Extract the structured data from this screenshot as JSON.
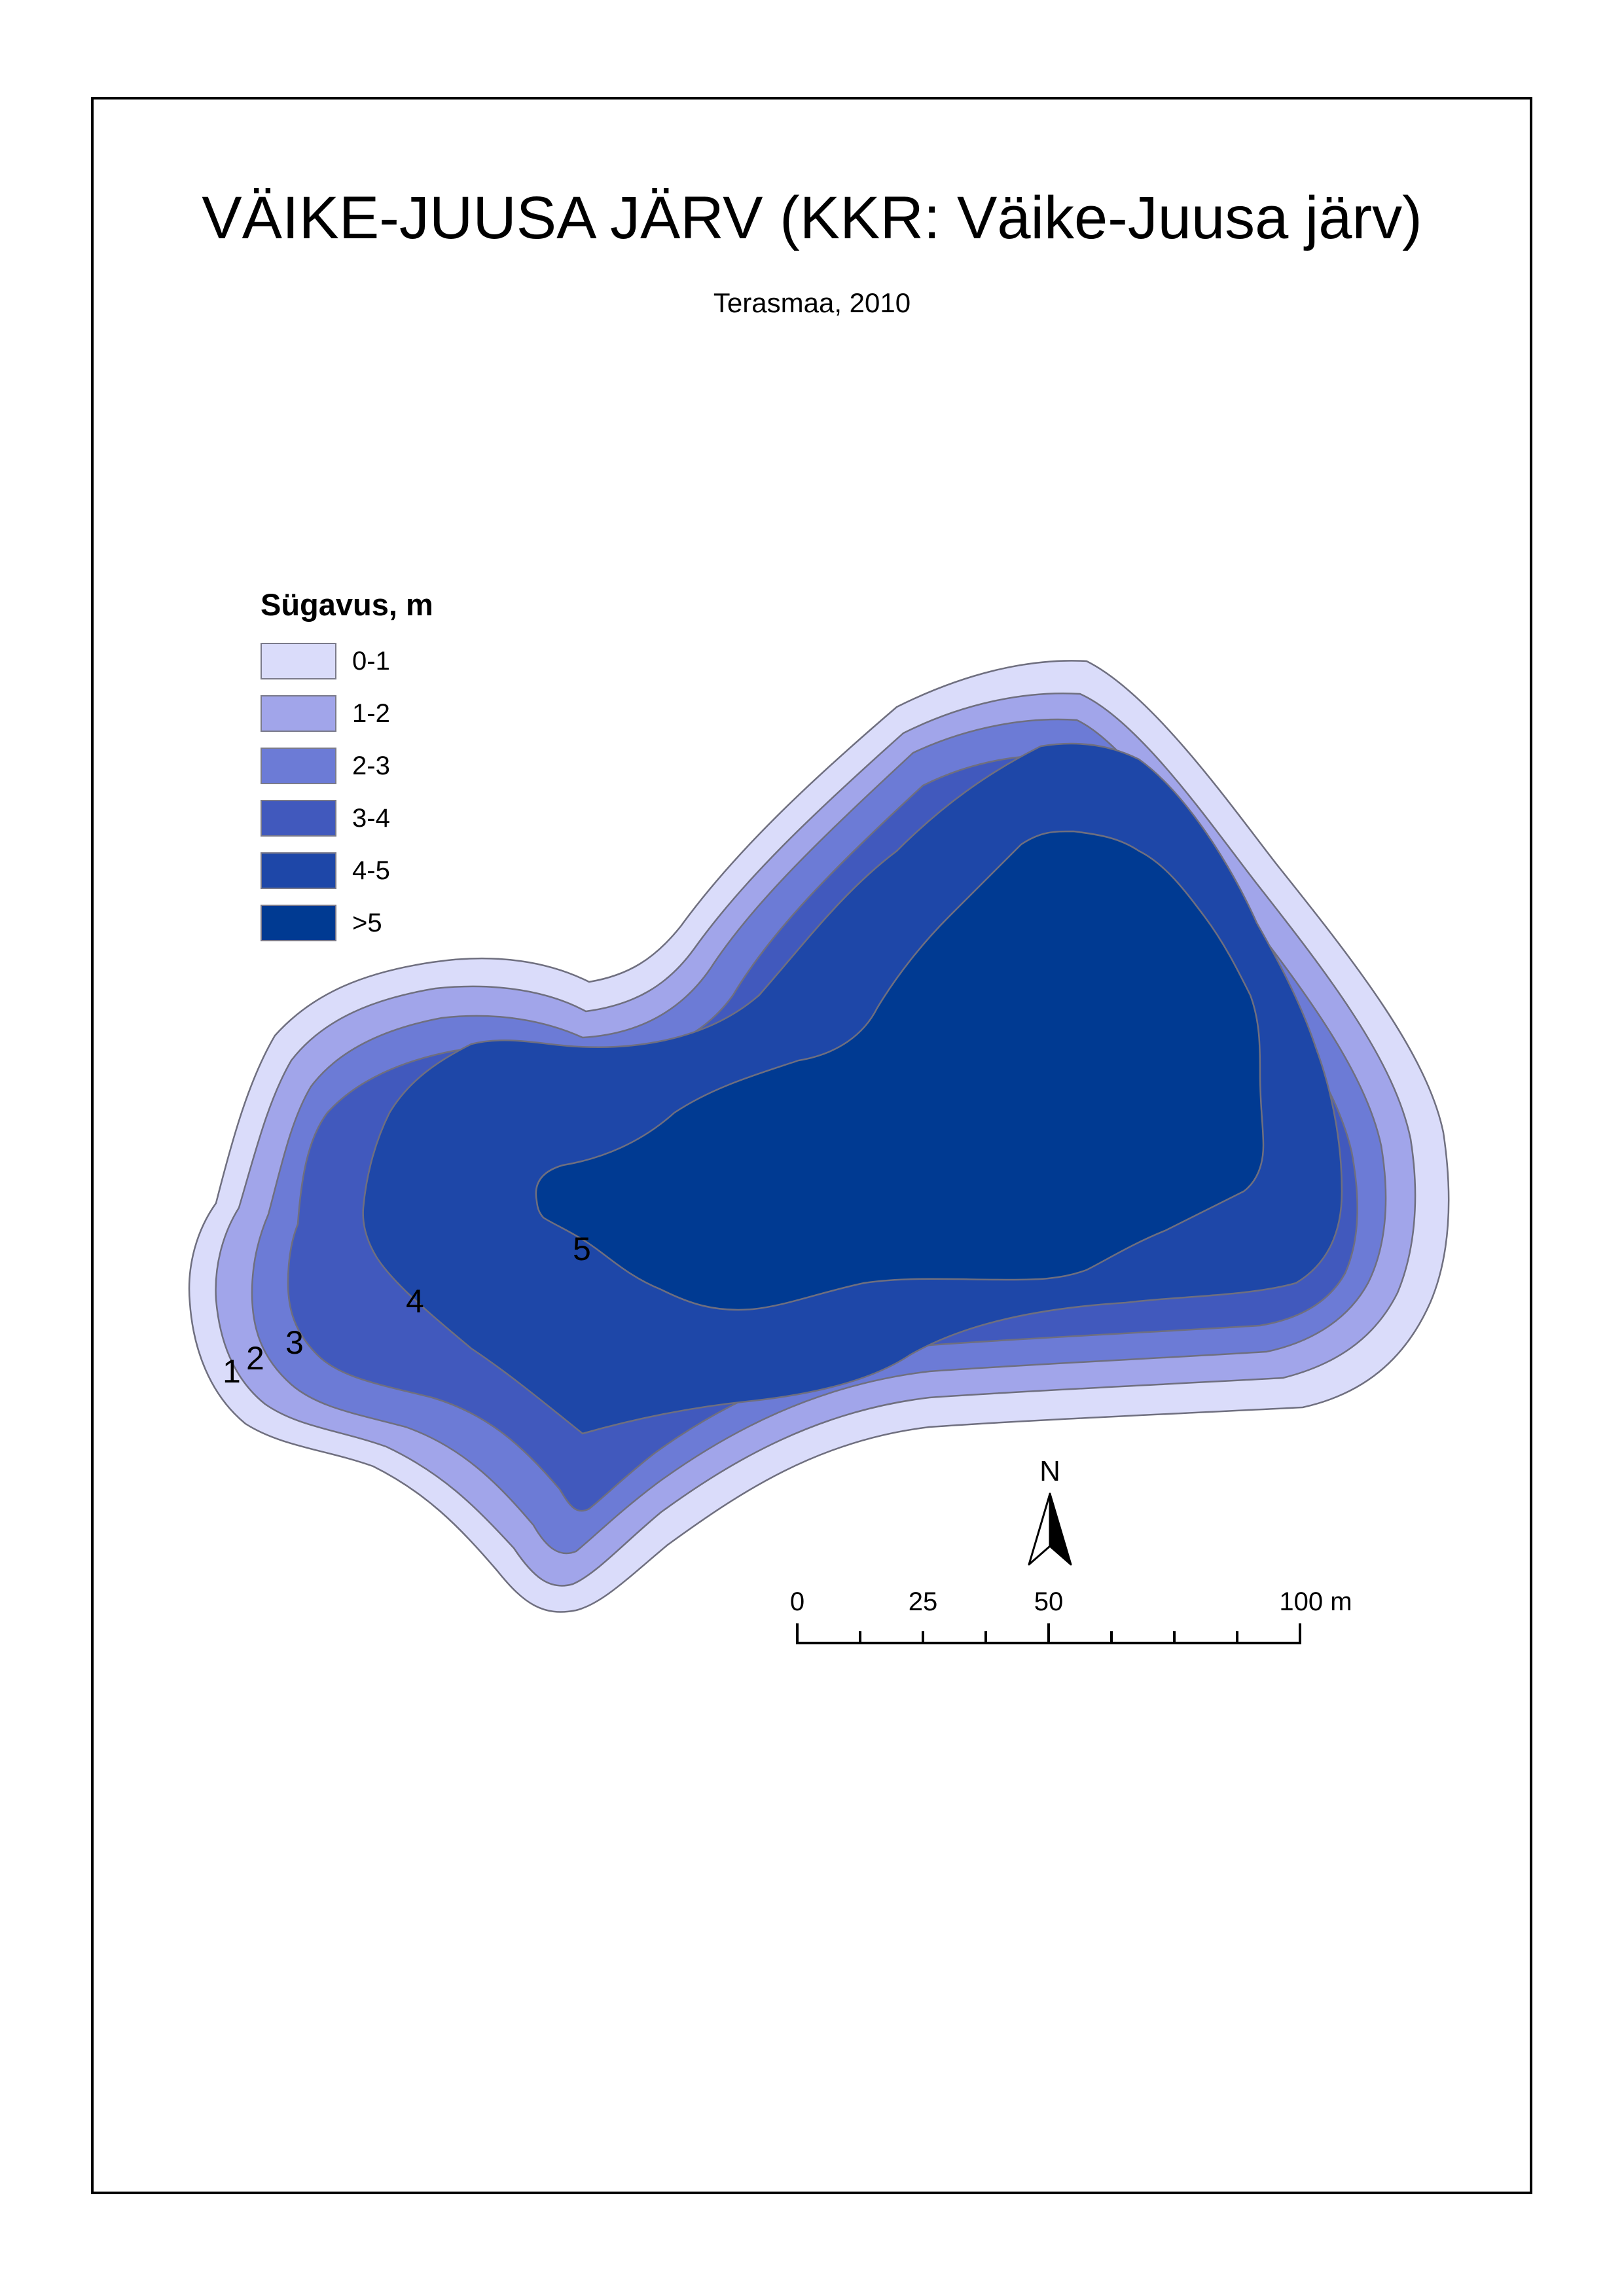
{
  "title": "VÄIKE-JUUSA JÄRV (KKR: Väike-Juusa järv)",
  "subtitle": "Terasmaa, 2010",
  "legend": {
    "title": "Sügavus, m",
    "items": [
      {
        "label": "0-1",
        "color": "#dadcfa"
      },
      {
        "label": "1-2",
        "color": "#a1a5ea"
      },
      {
        "label": "2-3",
        "color": "#6c7bd6"
      },
      {
        "label": "3-4",
        "color": "#4159bd"
      },
      {
        "label": "4-5",
        "color": "#1e47a8"
      },
      {
        "label": ">5",
        "color": "#003a92"
      }
    ]
  },
  "contour_labels": [
    "1",
    "2",
    "3",
    "4",
    "5"
  ],
  "north_arrow": {
    "label": "N",
    "icon": "north-arrow-icon"
  },
  "scale_bar": {
    "tick_labels": [
      "0",
      "25",
      "50",
      "100 m"
    ]
  },
  "outline_color": "#6f6f7f",
  "frame_color": "#000000"
}
